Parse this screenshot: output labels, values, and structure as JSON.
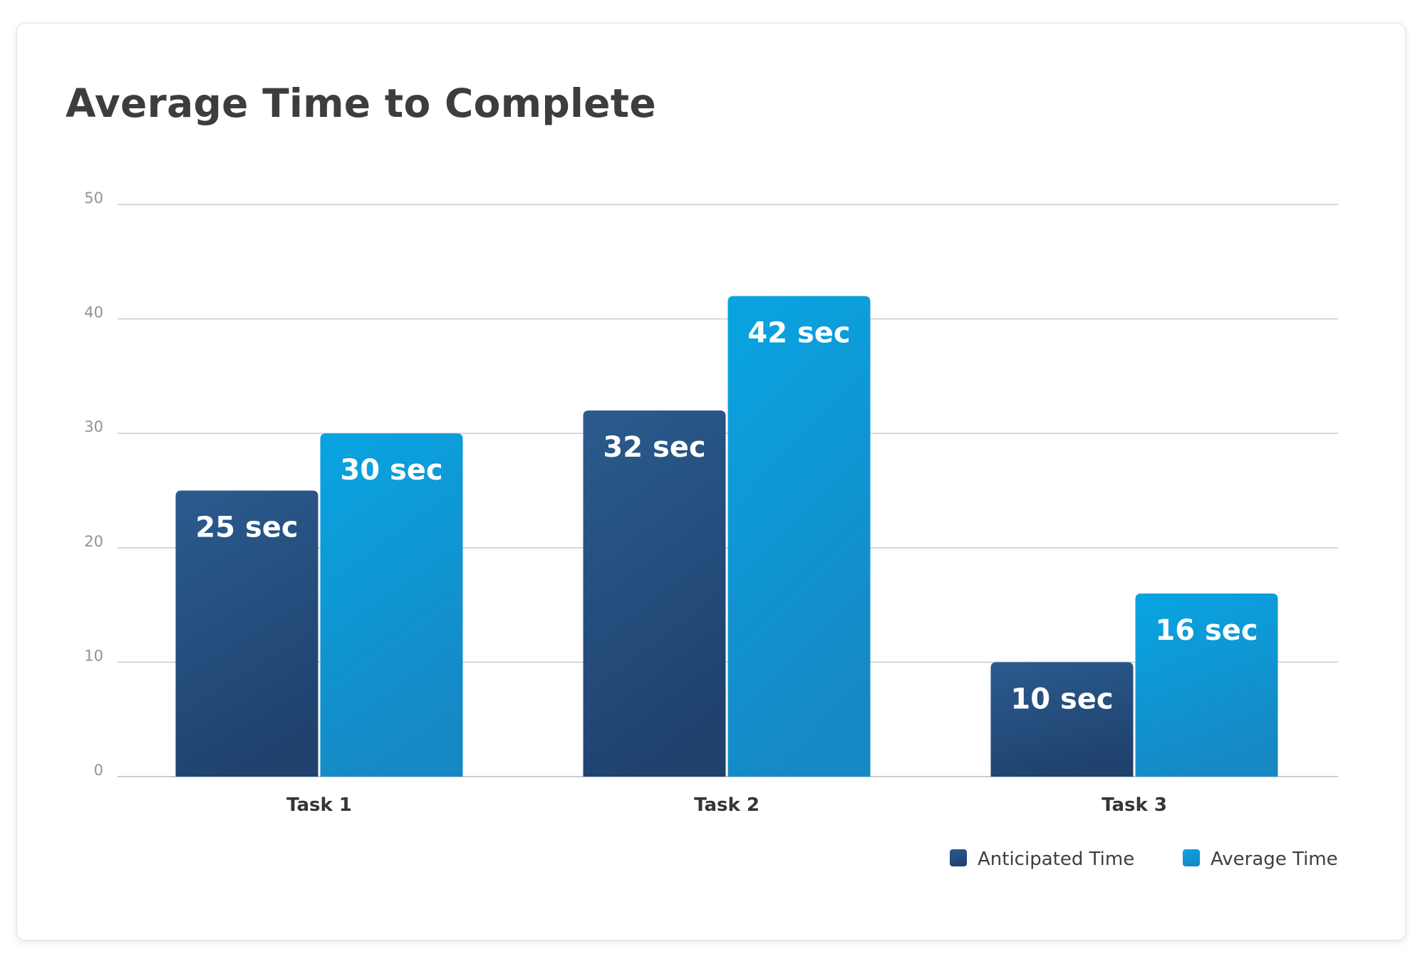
{
  "chart_data": {
    "type": "bar",
    "title": "Average Time to Complete",
    "xlabel": "",
    "ylabel": "",
    "ylim": [
      0,
      50
    ],
    "yticks": [
      0,
      10,
      20,
      30,
      40,
      50
    ],
    "grid": true,
    "legend_position": "bottom-right",
    "categories": [
      "Task 1",
      "Task 2",
      "Task 3"
    ],
    "series": [
      {
        "name": "Anticipated Time",
        "values": [
          25,
          32,
          10
        ],
        "labels": [
          "25 sec",
          "32 sec",
          "10 sec"
        ],
        "color": "#1f416e",
        "color_light": "#2a5a8c"
      },
      {
        "name": "Average Time",
        "values": [
          30,
          42,
          16
        ],
        "labels": [
          "30 sec",
          "42 sec",
          "16 sec"
        ],
        "color": "#1688c4",
        "color_light": "#09a3e0"
      }
    ]
  }
}
